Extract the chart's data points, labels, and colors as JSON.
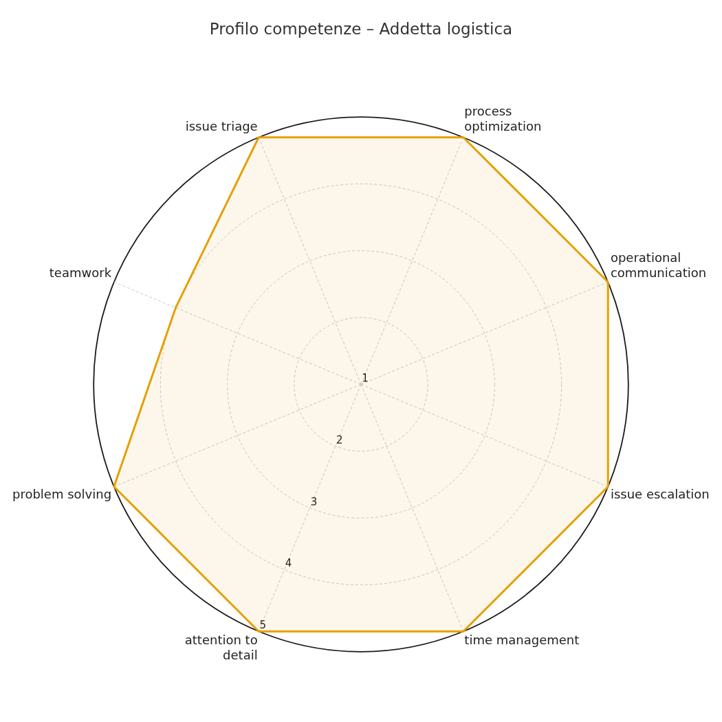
{
  "chart_data": {
    "type": "radar",
    "title": "Profilo competenze – Addetta logistica",
    "categories": [
      "process optimization",
      "operational communication",
      "issue escalation",
      "time management",
      "attention to detail",
      "problem solving",
      "teamwork",
      "issue triage"
    ],
    "series": [
      {
        "color": "#e69f00",
        "values": [
          5,
          5,
          5,
          5,
          5,
          5,
          4,
          5
        ]
      }
    ],
    "ylim": [
      1,
      5
    ],
    "yticks": [
      1,
      2,
      3,
      4,
      5
    ],
    "grid": true
  }
}
